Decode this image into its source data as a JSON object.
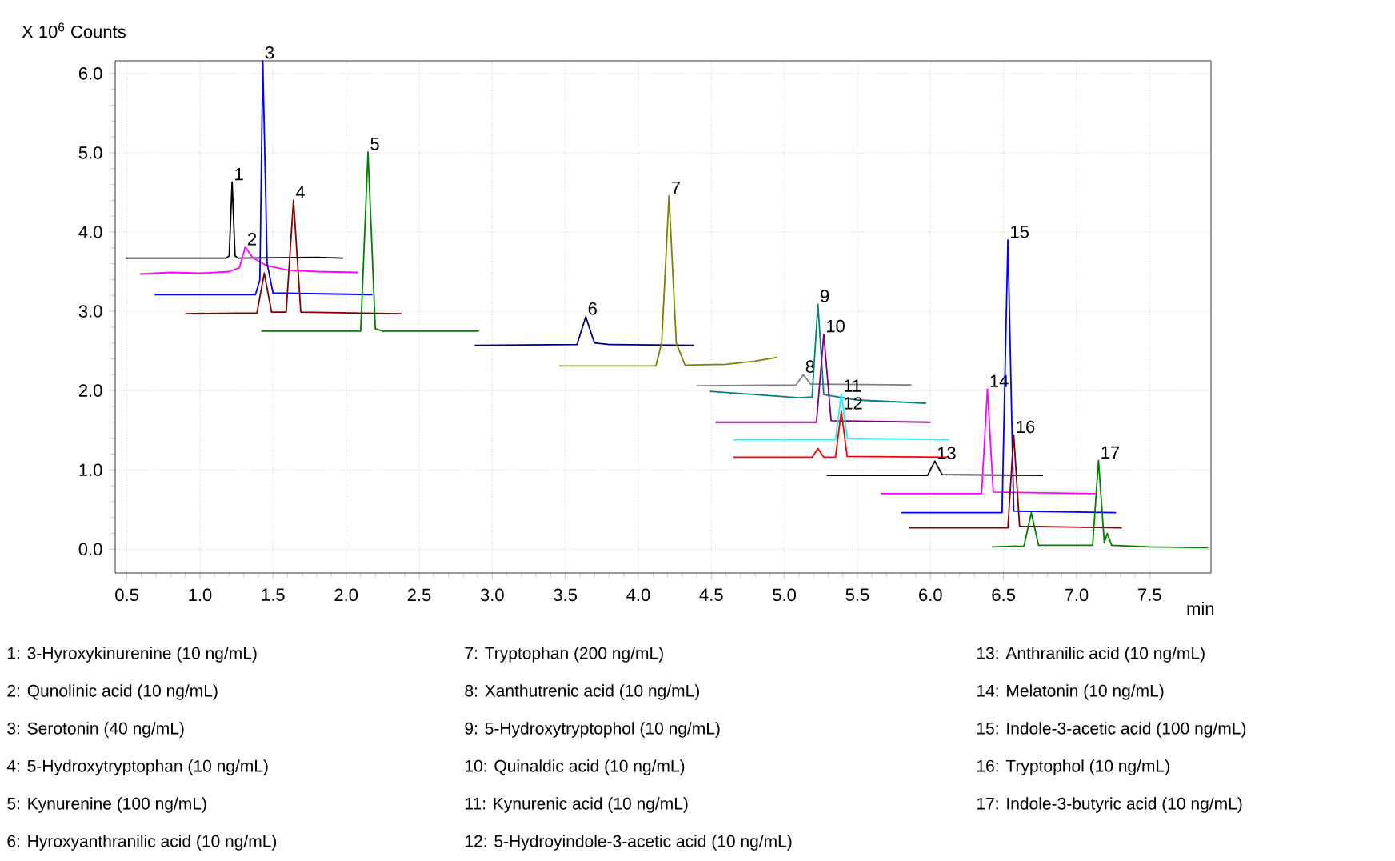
{
  "chart_data": {
    "type": "line",
    "ylabel": "X 10$^{6}$ Counts",
    "xlabel": "min",
    "xlim": [
      0.42,
      7.92
    ],
    "ylim": [
      -0.3,
      6.16
    ],
    "xticks": [
      {
        "value": 0.5,
        "label": "0.5"
      },
      {
        "value": 1.0,
        "label": "1.0"
      },
      {
        "value": 1.5,
        "label": "1.5"
      },
      {
        "value": 2.0,
        "label": "2.0"
      },
      {
        "value": 2.5,
        "label": "2.5"
      },
      {
        "value": 3.0,
        "label": "3.0"
      },
      {
        "value": 3.5,
        "label": "3.5"
      },
      {
        "value": 4.0,
        "label": "4.0"
      },
      {
        "value": 4.5,
        "label": "4.5"
      },
      {
        "value": 5.0,
        "label": "5.0"
      },
      {
        "value": 5.5,
        "label": "5.5"
      },
      {
        "value": 6.0,
        "label": "6.0"
      },
      {
        "value": 6.5,
        "label": "6.5"
      },
      {
        "value": 7.0,
        "label": "7.0"
      },
      {
        "value": 7.5,
        "label": "7.5"
      }
    ],
    "yticks": [
      {
        "value": 0,
        "label": "0.0"
      },
      {
        "value": 1,
        "label": "1.0"
      },
      {
        "value": 2,
        "label": "2.0"
      },
      {
        "value": 3,
        "label": "3.0"
      },
      {
        "value": 4,
        "label": "4.0"
      },
      {
        "value": 5,
        "label": "5.0"
      },
      {
        "value": 6,
        "label": "6.0"
      }
    ],
    "grid": true,
    "series": [
      {
        "name": "1",
        "color": "#000000",
        "x": [
          0.49,
          1.18,
          1.2,
          1.22,
          1.24,
          1.26,
          1.8,
          1.98
        ],
        "values": [
          3.67,
          3.67,
          3.7,
          4.63,
          3.7,
          3.67,
          3.68,
          3.67
        ]
      },
      {
        "name": "2",
        "color": "#ff00ff",
        "x": [
          0.59,
          0.8,
          1.0,
          1.2,
          1.27,
          1.31,
          1.36,
          1.45,
          1.6,
          1.8,
          2.08
        ],
        "values": [
          3.47,
          3.49,
          3.48,
          3.5,
          3.55,
          3.81,
          3.68,
          3.58,
          3.52,
          3.5,
          3.49
        ]
      },
      {
        "name": "3",
        "color": "#0000ff",
        "x": [
          0.69,
          1.38,
          1.41,
          1.43,
          1.46,
          1.5,
          2.18
        ],
        "values": [
          3.21,
          3.21,
          3.4,
          6.16,
          3.6,
          3.23,
          3.21
        ]
      },
      {
        "name": "4",
        "color": "#800000",
        "x": [
          0.9,
          1.39,
          1.44,
          1.49,
          1.59,
          1.64,
          1.69,
          2.38
        ],
        "values": [
          2.97,
          2.98,
          3.48,
          2.99,
          2.99,
          4.4,
          2.99,
          2.97
        ]
      },
      {
        "name": "5",
        "color": "#008000",
        "x": [
          1.42,
          2.1,
          2.15,
          2.2,
          2.25,
          2.91
        ],
        "values": [
          2.75,
          2.75,
          5.01,
          2.78,
          2.75,
          2.75
        ]
      },
      {
        "name": "6",
        "color": "#000080",
        "x": [
          2.88,
          3.58,
          3.64,
          3.7,
          3.8,
          4.38
        ],
        "values": [
          2.57,
          2.58,
          2.93,
          2.6,
          2.58,
          2.57
        ]
      },
      {
        "name": "7",
        "color": "#808000",
        "x": [
          3.46,
          4.12,
          4.16,
          4.21,
          4.26,
          4.32,
          4.6,
          4.8,
          4.95
        ],
        "values": [
          2.31,
          2.31,
          2.6,
          4.46,
          2.6,
          2.32,
          2.33,
          2.37,
          2.42
        ]
      },
      {
        "name": "8",
        "color": "#808080",
        "x": [
          4.4,
          5.08,
          5.13,
          5.18,
          5.87
        ],
        "values": [
          2.06,
          2.07,
          2.2,
          2.08,
          2.07
        ]
      },
      {
        "name": "9",
        "color": "#008080",
        "x": [
          4.49,
          4.8,
          5.1,
          5.19,
          5.23,
          5.27,
          5.5,
          5.97
        ],
        "values": [
          1.99,
          1.95,
          1.91,
          1.92,
          3.09,
          1.95,
          1.88,
          1.84
        ]
      },
      {
        "name": "10",
        "color": "#800080",
        "x": [
          4.53,
          5.22,
          5.27,
          5.32,
          6.0
        ],
        "values": [
          1.6,
          1.6,
          2.71,
          1.62,
          1.6
        ]
      },
      {
        "name": "11",
        "color": "#00ffff",
        "x": [
          4.65,
          5.35,
          5.39,
          5.43,
          6.13
        ],
        "values": [
          1.38,
          1.38,
          1.96,
          1.4,
          1.38
        ]
      },
      {
        "name": "12",
        "color": "#ff0000",
        "x": [
          4.65,
          5.19,
          5.23,
          5.27,
          5.35,
          5.39,
          5.43,
          6.13
        ],
        "values": [
          1.16,
          1.16,
          1.27,
          1.16,
          1.16,
          1.74,
          1.17,
          1.16
        ]
      },
      {
        "name": "13",
        "color": "#000000",
        "x": [
          5.29,
          5.98,
          6.03,
          6.08,
          6.77
        ],
        "values": [
          0.93,
          0.93,
          1.11,
          0.94,
          0.93
        ]
      },
      {
        "name": "14",
        "color": "#ff00ff",
        "x": [
          5.66,
          6.35,
          6.39,
          6.43,
          7.13
        ],
        "values": [
          0.7,
          0.7,
          2.02,
          0.72,
          0.7
        ]
      },
      {
        "name": "15",
        "color": "#0000ff",
        "x": [
          5.8,
          6.49,
          6.53,
          6.57,
          7.27
        ],
        "values": [
          0.46,
          0.46,
          3.9,
          0.48,
          0.46
        ]
      },
      {
        "name": "16",
        "color": "#800000",
        "x": [
          5.85,
          6.53,
          6.57,
          6.61,
          7.31
        ],
        "values": [
          0.27,
          0.27,
          1.44,
          0.29,
          0.27
        ]
      },
      {
        "name": "17",
        "color": "#008000",
        "x": [
          6.42,
          6.64,
          6.69,
          6.74,
          7.11,
          7.15,
          7.19,
          7.21,
          7.24,
          7.5,
          7.9
        ],
        "values": [
          0.03,
          0.04,
          0.46,
          0.05,
          0.05,
          1.12,
          0.08,
          0.2,
          0.05,
          0.03,
          0.02
        ]
      }
    ],
    "annotations": [
      "1:  3-Hyroxykinurenine (10 ng/mL)",
      "2:  Qunolinic acid (10 ng/mL)",
      "3:  Serotonin (40 ng/mL)",
      "4:  5-Hydroxytryptophan (10 ng/mL)",
      "5:  Kynurenine (100 ng/mL)",
      "6:  Hyroxyanthranilic acid (10 ng/mL)",
      "7:  Tryptophan (200 ng/mL)",
      "8:  Xanthutrenic acid (10 ng/mL)",
      "9:  5-Hydroxytryptophol (10 ng/mL)",
      "10:  Quinaldic acid (10 ng/mL)",
      "11:  Kynurenic acid (10 ng/mL)",
      "12:  5-Hydroyindole-3-acetic acid (10 ng/mL)",
      "13:  Anthranilic acid (10 ng/mL)",
      "14:  Melatonin (10 ng/mL)",
      "15:  Indole-3-acetic acid (100 ng/mL)",
      "16:  Tryptophol (10 ng/mL)",
      "17:  Indole-3-butyric acid  (10 ng/mL)"
    ]
  }
}
